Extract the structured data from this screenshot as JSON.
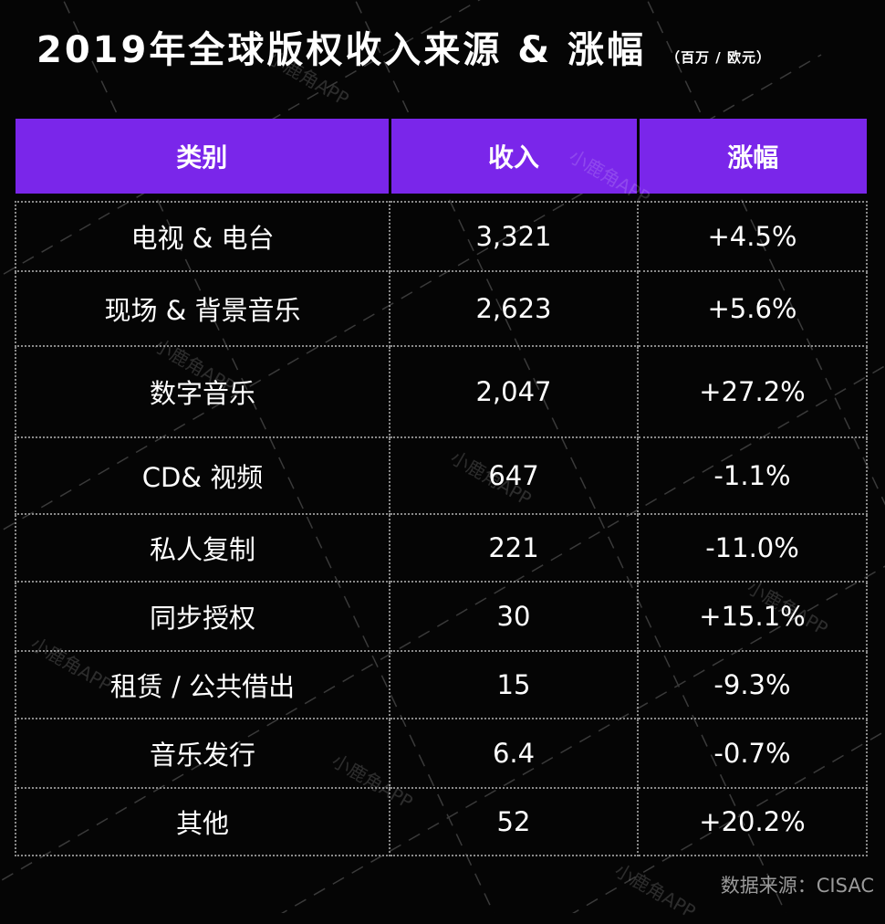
{
  "chart_data": {
    "type": "table",
    "title": "2019年全球版权收入来源 & 涨幅",
    "unit": "（百万 / 欧元）",
    "columns": [
      "类别",
      "收入",
      "涨幅"
    ],
    "rows": [
      {
        "category": "电视 & 电台",
        "revenue": "3,321",
        "growth": "+4.5%"
      },
      {
        "category": "现场 & 背景音乐",
        "revenue": "2,623",
        "growth": "+5.6%"
      },
      {
        "category": "数字音乐",
        "revenue": "2,047",
        "growth": "+27.2%"
      },
      {
        "category": "CD& 视频",
        "revenue": "647",
        "growth": "-1.1%"
      },
      {
        "category": "私人复制",
        "revenue": "221",
        "growth": "-11.0%"
      },
      {
        "category": "同步授权",
        "revenue": "30",
        "growth": "+15.1%"
      },
      {
        "category": "租赁 / 公共借出",
        "revenue": "15",
        "growth": "-9.3%"
      },
      {
        "category": "音乐发行",
        "revenue": "6.4",
        "growth": "-0.7%"
      },
      {
        "category": "其他",
        "revenue": "52",
        "growth": "+20.2%"
      }
    ],
    "source": "数据来源：CISAC"
  },
  "watermark_text": "小鹿角APP",
  "colors": {
    "background": "#050505",
    "header_fill": "#7a26ea",
    "text": "#ffffff",
    "border": "#8a8a8a"
  }
}
